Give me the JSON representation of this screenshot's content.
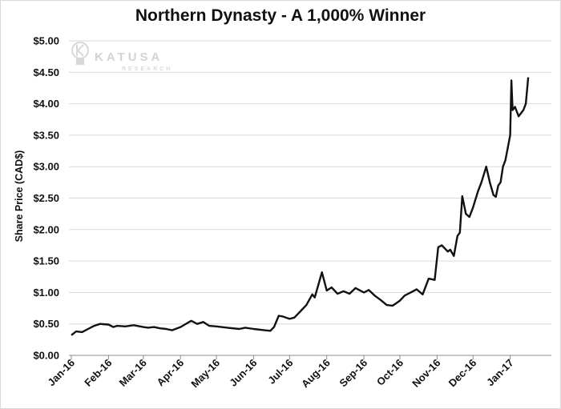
{
  "chart_data": {
    "type": "line",
    "title": "Northern Dynasty - A 1,000% Winner",
    "ylabel": "Share Price (CAD$)",
    "xlabel": "",
    "ylim": [
      0,
      5
    ],
    "yticks": [
      "$0.00",
      "$0.50",
      "$1.00",
      "$1.50",
      "$2.00",
      "$2.50",
      "$3.00",
      "$3.50",
      "$4.00",
      "$4.50",
      "$5.00"
    ],
    "xticks": [
      "Jan-16",
      "Feb-16",
      "Mar-16",
      "Apr-16",
      "May-16",
      "Jun-16",
      "Jul-16",
      "Aug-16",
      "Sep-16",
      "Oct-16",
      "Nov-16",
      "Dec-16",
      "Jan-17"
    ],
    "grid": "horizontal",
    "series": [
      {
        "color": "#111111",
        "x": [
          "2016-01-01",
          "2016-01-05",
          "2016-01-10",
          "2016-01-15",
          "2016-01-20",
          "2016-01-25",
          "2016-02-01",
          "2016-02-05",
          "2016-02-08",
          "2016-02-15",
          "2016-02-22",
          "2016-03-01",
          "2016-03-05",
          "2016-03-10",
          "2016-03-15",
          "2016-03-20",
          "2016-03-25",
          "2016-04-01",
          "2016-04-10",
          "2016-04-15",
          "2016-04-20",
          "2016-04-25",
          "2016-05-01",
          "2016-05-10",
          "2016-05-20",
          "2016-05-25",
          "2016-06-01",
          "2016-06-10",
          "2016-06-15",
          "2016-06-18",
          "2016-06-22",
          "2016-06-25",
          "2016-07-01",
          "2016-07-05",
          "2016-07-10",
          "2016-07-15",
          "2016-07-20",
          "2016-07-22",
          "2016-07-25",
          "2016-07-28",
          "2016-08-01",
          "2016-08-05",
          "2016-08-10",
          "2016-08-15",
          "2016-08-20",
          "2016-08-25",
          "2016-09-01",
          "2016-09-05",
          "2016-09-10",
          "2016-09-15",
          "2016-09-20",
          "2016-09-25",
          "2016-10-01",
          "2016-10-05",
          "2016-10-10",
          "2016-10-15",
          "2016-10-20",
          "2016-10-25",
          "2016-10-30",
          "2016-11-02",
          "2016-11-05",
          "2016-11-10",
          "2016-11-12",
          "2016-11-15",
          "2016-11-18",
          "2016-11-20",
          "2016-11-22",
          "2016-11-25",
          "2016-11-28",
          "2016-12-01",
          "2016-12-05",
          "2016-12-08",
          "2016-12-12",
          "2016-12-15",
          "2016-12-18",
          "2016-12-20",
          "2016-12-22",
          "2016-12-24",
          "2016-12-26",
          "2016-12-28",
          "2016-12-30",
          "2017-01-01",
          "2017-01-02",
          "2017-01-03",
          "2017-01-05",
          "2017-01-08",
          "2017-01-10",
          "2017-01-12",
          "2017-01-14",
          "2017-01-16"
        ],
        "y": [
          0.32,
          0.38,
          0.37,
          0.42,
          0.47,
          0.5,
          0.49,
          0.45,
          0.47,
          0.46,
          0.48,
          0.45,
          0.44,
          0.45,
          0.43,
          0.42,
          0.4,
          0.45,
          0.55,
          0.5,
          0.53,
          0.47,
          0.46,
          0.44,
          0.42,
          0.44,
          0.42,
          0.4,
          0.39,
          0.45,
          0.63,
          0.62,
          0.58,
          0.6,
          0.7,
          0.8,
          0.97,
          0.92,
          1.12,
          1.32,
          1.03,
          1.08,
          0.98,
          1.02,
          0.98,
          1.07,
          1.0,
          1.04,
          0.95,
          0.88,
          0.8,
          0.79,
          0.87,
          0.95,
          1.0,
          1.05,
          0.97,
          1.22,
          1.2,
          1.72,
          1.75,
          1.65,
          1.68,
          1.58,
          1.9,
          1.95,
          2.53,
          2.25,
          2.2,
          2.35,
          2.6,
          2.75,
          3.0,
          2.75,
          2.55,
          2.52,
          2.7,
          2.75,
          3.0,
          3.1,
          3.3,
          3.5,
          4.37,
          3.9,
          3.95,
          3.8,
          3.85,
          3.9,
          4.0,
          4.42
        ]
      }
    ]
  },
  "watermark": {
    "word": "KATUSA",
    "sub": "RESEARCH",
    "icon": "lightbulb-k-icon"
  }
}
